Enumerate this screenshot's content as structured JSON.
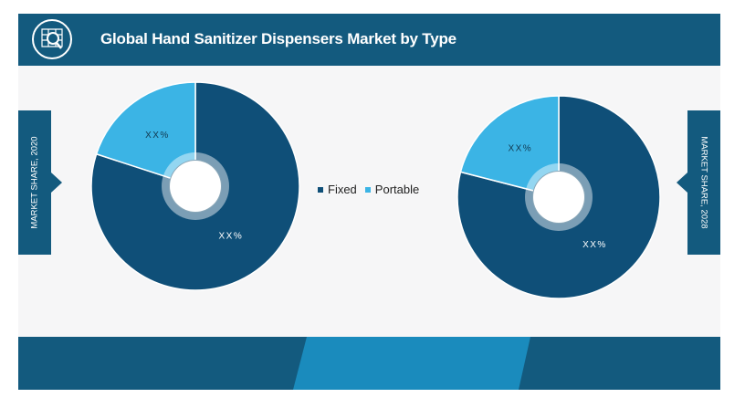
{
  "header": {
    "title": "Global Hand Sanitizer Dispensers Market by Type",
    "icon": "globe-search-icon"
  },
  "left_label": "MARKET SHARE, 2020",
  "right_label": "MARKET SHARE, 2028",
  "colors": {
    "header_bg": "#135a7e",
    "fixed": "#0f4f78",
    "portable": "#3bb4e5",
    "footer_accent": "#1a8bbd"
  },
  "chart_data": [
    {
      "type": "pie",
      "style": "donut",
      "categories": [
        "Fixed",
        "Portable"
      ],
      "values": [
        80,
        20
      ],
      "data_labels": [
        "XX%",
        "XX%"
      ],
      "legend": "center"
    },
    {
      "type": "pie",
      "style": "donut",
      "categories": [
        "Fixed",
        "Portable"
      ],
      "values": [
        79,
        21
      ],
      "data_labels": [
        "XX%",
        "XX%"
      ],
      "legend": "center"
    }
  ]
}
